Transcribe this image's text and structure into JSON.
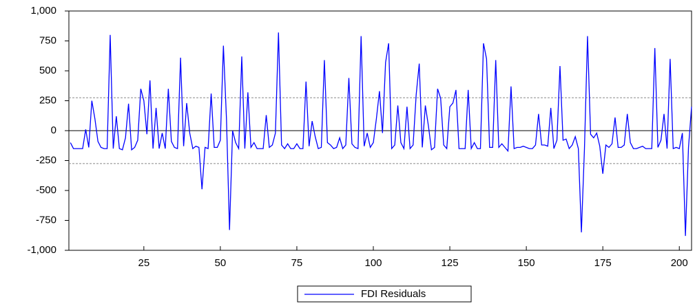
{
  "chart_data": {
    "type": "line",
    "x": [
      1,
      2,
      3,
      4,
      5,
      6,
      7,
      8,
      9,
      10,
      11,
      12,
      13,
      14,
      15,
      16,
      17,
      18,
      19,
      20,
      21,
      22,
      23,
      24,
      25,
      26,
      27,
      28,
      29,
      30,
      31,
      32,
      33,
      34,
      35,
      36,
      37,
      38,
      39,
      40,
      41,
      42,
      43,
      44,
      45,
      46,
      47,
      48,
      49,
      50,
      51,
      52,
      53,
      54,
      55,
      56,
      57,
      58,
      59,
      60,
      61,
      62,
      63,
      64,
      65,
      66,
      67,
      68,
      69,
      70,
      71,
      72,
      73,
      74,
      75,
      76,
      77,
      78,
      79,
      80,
      81,
      82,
      83,
      84,
      85,
      86,
      87,
      88,
      89,
      90,
      91,
      92,
      93,
      94,
      95,
      96,
      97,
      98,
      99,
      100,
      101,
      102,
      103,
      104,
      105,
      106,
      107,
      108,
      109,
      110,
      111,
      112,
      113,
      114,
      115,
      116,
      117,
      118,
      119,
      120,
      121,
      122,
      123,
      124,
      125,
      126,
      127,
      128,
      129,
      130,
      131,
      132,
      133,
      134,
      135,
      136,
      137,
      138,
      139,
      140,
      141,
      142,
      143,
      144,
      145,
      146,
      147,
      148,
      149,
      150,
      151,
      152,
      153,
      154,
      155,
      156,
      157,
      158,
      159,
      160,
      161,
      162,
      163,
      164,
      165,
      166,
      167,
      168,
      169,
      170,
      171,
      172,
      173,
      174,
      175,
      176,
      177,
      178,
      179,
      180,
      181,
      182,
      183,
      184,
      185,
      186,
      187,
      188,
      189,
      190,
      191,
      192,
      193,
      194,
      195,
      196,
      197,
      198,
      199,
      200,
      201,
      202,
      203,
      204
    ],
    "series": [
      {
        "name": "FDI Residuals",
        "color": "#0000ff",
        "values": [
          -100,
          -150,
          -150,
          -150,
          -150,
          10,
          -140,
          250,
          100,
          -90,
          -140,
          -150,
          -150,
          800,
          -150,
          120,
          -150,
          -160,
          -60,
          225,
          -160,
          -140,
          -80,
          350,
          250,
          -30,
          420,
          -150,
          190,
          -150,
          -20,
          -150,
          350,
          -90,
          -140,
          -150,
          610,
          -130,
          230,
          -20,
          -150,
          -130,
          -140,
          -490,
          -140,
          -150,
          310,
          -140,
          -140,
          -80,
          710,
          100,
          -830,
          0,
          -100,
          -150,
          620,
          -150,
          320,
          -140,
          -100,
          -150,
          -150,
          -150,
          130,
          -140,
          -120,
          -20,
          820,
          -120,
          -150,
          -110,
          -150,
          -150,
          -110,
          -150,
          -150,
          410,
          -130,
          80,
          -50,
          -150,
          -140,
          590,
          -100,
          -120,
          -150,
          -140,
          -60,
          -150,
          -120,
          440,
          -110,
          -140,
          -150,
          790,
          -130,
          -20,
          -140,
          -100,
          100,
          330,
          -20,
          570,
          730,
          -150,
          -120,
          210,
          -100,
          -150,
          200,
          -150,
          -120,
          300,
          560,
          -140,
          210,
          40,
          -160,
          -140,
          350,
          270,
          -120,
          -150,
          200,
          230,
          340,
          -150,
          -150,
          -150,
          340,
          -150,
          -100,
          -150,
          -150,
          730,
          600,
          -140,
          -140,
          590,
          -140,
          -110,
          -140,
          -170,
          370,
          -150,
          -140,
          -140,
          -130,
          -140,
          -150,
          -150,
          -120,
          140,
          -120,
          -120,
          -130,
          190,
          -150,
          -80,
          540,
          -80,
          -70,
          -150,
          -120,
          -50,
          -150,
          -850,
          -150,
          790,
          -30,
          -60,
          -20,
          -130,
          -360,
          -120,
          -140,
          -110,
          110,
          -140,
          -140,
          -120,
          140,
          -100,
          -150,
          -150,
          -140,
          -130,
          -150,
          -150,
          -150,
          690,
          -140,
          -80,
          140,
          -150,
          600,
          -150,
          -140,
          -150,
          -20,
          -880,
          -140,
          200
        ]
      }
    ],
    "xlim": [
      0.5,
      204
    ],
    "xticks": [
      25,
      50,
      75,
      100,
      125,
      150,
      175,
      200
    ],
    "ylim": [
      -1000,
      1000
    ],
    "yticks": [
      {
        "value": -1000,
        "label": "-1,000"
      },
      -750,
      -500,
      -250,
      0,
      250,
      500,
      750,
      {
        "value": 1000,
        "label": "1,000"
      }
    ],
    "reference_lines": [
      275,
      -275
    ],
    "legend": "bottom"
  }
}
